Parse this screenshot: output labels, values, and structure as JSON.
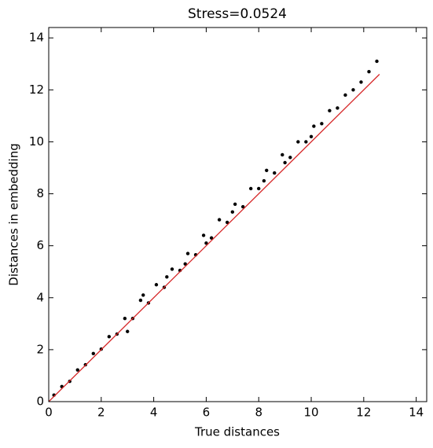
{
  "chart_data": {
    "type": "scatter",
    "title": "Stress=0.0524",
    "x_label": "True distances",
    "y_label": "Distances in embedding",
    "xlim": [
      0,
      14.4
    ],
    "ylim": [
      0,
      14.4
    ],
    "xticks": [
      0,
      2,
      4,
      6,
      8,
      10,
      12,
      14
    ],
    "yticks": [
      0,
      2,
      4,
      6,
      8,
      10,
      12,
      14
    ],
    "grid": false,
    "series": [
      {
        "color": "#000000",
        "x": [
          0.2,
          0.5,
          0.8,
          1.1,
          1.4,
          1.7,
          2.0,
          2.3,
          2.6,
          2.9,
          3.2,
          3.5,
          3.8,
          4.1,
          4.4,
          4.7,
          5.0,
          5.3,
          5.6,
          5.9,
          6.2,
          6.5,
          6.8,
          7.1,
          7.4,
          7.7,
          8.0,
          8.3,
          8.6,
          8.9,
          9.2,
          9.5,
          9.8,
          10.1,
          10.4,
          10.7,
          11.0,
          11.3,
          11.6,
          11.9,
          12.2,
          12.5,
          3.0,
          3.6,
          4.5,
          5.2,
          6.0,
          7.0,
          8.2,
          9.0,
          10.0
        ],
        "y": [
          0.25,
          0.58,
          0.78,
          1.22,
          1.42,
          1.85,
          2.02,
          2.5,
          2.6,
          3.2,
          3.2,
          3.9,
          3.8,
          4.5,
          4.4,
          5.1,
          5.05,
          5.7,
          5.65,
          6.4,
          6.3,
          7.0,
          6.9,
          7.6,
          7.5,
          8.2,
          8.2,
          8.9,
          8.8,
          9.5,
          9.4,
          10.0,
          10.0,
          10.6,
          10.7,
          11.2,
          11.3,
          11.8,
          12.0,
          12.3,
          12.7,
          13.1,
          2.7,
          4.1,
          4.8,
          5.3,
          6.1,
          7.3,
          8.5,
          9.2,
          10.2
        ]
      }
    ],
    "reference_line": {
      "color": "#d62728",
      "x": [
        0,
        12.6
      ],
      "y": [
        0,
        12.6
      ]
    }
  }
}
